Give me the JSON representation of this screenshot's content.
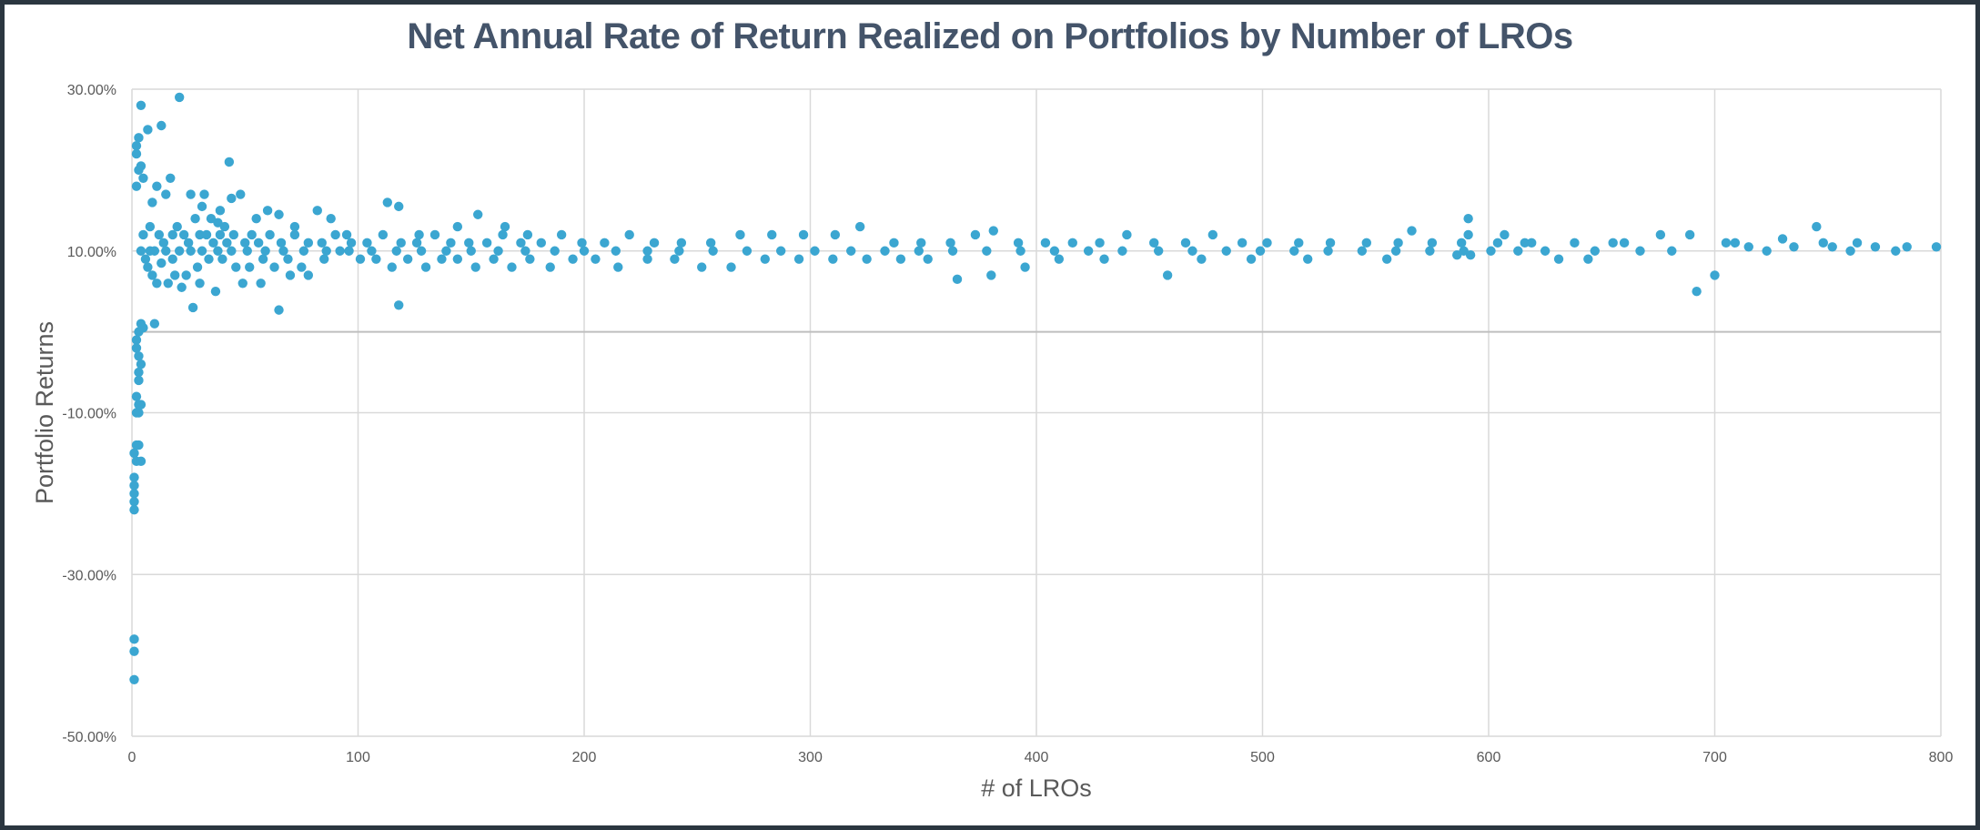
{
  "chart_data": {
    "type": "scatter",
    "title": "Net Annual Rate of Return Realized on Portfolios by Number of LROs",
    "xlabel": "# of LROs",
    "ylabel": "Portfolio Returns",
    "xlim": [
      0,
      800
    ],
    "ylim": [
      -50,
      30
    ],
    "x_ticks": [
      0,
      100,
      200,
      300,
      400,
      500,
      600,
      700,
      800
    ],
    "x_tick_labels": [
      "0",
      "100",
      "200",
      "300",
      "400",
      "500",
      "600",
      "700",
      "800"
    ],
    "y_ticks": [
      30,
      10,
      -10,
      -30,
      -50
    ],
    "y_tick_labels": [
      "30.00%",
      "10.00%",
      "-10.00%",
      "-30.00%",
      "-50.00%"
    ],
    "grid": true,
    "legend": "none",
    "marker_color": "#3ba6d1",
    "series": [
      {
        "points": [
          [
            1,
            -39.5
          ],
          [
            1,
            -43
          ],
          [
            1,
            -38
          ],
          [
            1,
            -15
          ],
          [
            1,
            -18
          ],
          [
            1,
            -19
          ],
          [
            1,
            -20
          ],
          [
            1,
            -21
          ],
          [
            1,
            -22
          ],
          [
            2,
            -14
          ],
          [
            2,
            -16
          ],
          [
            2,
            -10
          ],
          [
            3,
            -14
          ],
          [
            3,
            -9
          ],
          [
            3,
            -10
          ],
          [
            2,
            -8
          ],
          [
            3,
            -5
          ],
          [
            3,
            -3
          ],
          [
            2,
            -2
          ],
          [
            3,
            -6
          ],
          [
            4,
            -9
          ],
          [
            4,
            -16
          ],
          [
            4,
            -4
          ],
          [
            3,
            0
          ],
          [
            4,
            1
          ],
          [
            2,
            -1
          ],
          [
            2,
            22
          ],
          [
            2,
            23
          ],
          [
            3,
            24
          ],
          [
            3,
            20
          ],
          [
            4,
            20.5
          ],
          [
            2,
            18
          ],
          [
            4,
            28
          ],
          [
            5,
            19
          ],
          [
            7,
            25
          ],
          [
            9,
            16
          ],
          [
            11,
            18
          ],
          [
            13,
            25.5
          ],
          [
            15,
            17
          ],
          [
            17,
            19
          ],
          [
            21,
            29
          ],
          [
            43,
            21
          ],
          [
            26,
            17
          ],
          [
            32,
            17
          ],
          [
            31,
            15.5
          ],
          [
            38,
            13.5
          ],
          [
            39,
            15
          ],
          [
            44,
            16.5
          ],
          [
            48,
            17
          ],
          [
            28,
            14
          ],
          [
            35,
            14
          ],
          [
            41,
            13
          ],
          [
            55,
            14
          ],
          [
            60,
            15
          ],
          [
            65,
            14.5
          ],
          [
            72,
            13
          ],
          [
            82,
            15
          ],
          [
            88,
            14
          ],
          [
            95,
            12
          ],
          [
            113,
            16
          ],
          [
            118,
            15.5
          ],
          [
            127,
            12
          ],
          [
            144,
            13
          ],
          [
            153,
            14.5
          ],
          [
            175,
            12
          ],
          [
            165,
            13
          ],
          [
            118,
            3.3
          ],
          [
            65,
            2.7
          ],
          [
            5,
            0.5
          ],
          [
            10,
            1
          ],
          [
            13,
            8.5
          ],
          [
            22,
            5.5
          ],
          [
            27,
            3
          ],
          [
            30,
            6
          ],
          [
            37,
            5
          ],
          [
            49,
            6
          ],
          [
            57,
            6
          ],
          [
            70,
            7
          ],
          [
            78,
            7
          ],
          [
            7,
            8
          ],
          [
            9,
            7
          ],
          [
            11,
            6
          ],
          [
            16,
            6
          ],
          [
            19,
            7
          ],
          [
            24,
            7
          ],
          [
            29,
            8
          ],
          [
            34,
            9
          ],
          [
            40,
            9
          ],
          [
            46,
            8
          ],
          [
            52,
            8
          ],
          [
            58,
            9
          ],
          [
            63,
            8
          ],
          [
            69,
            9
          ],
          [
            75,
            8
          ],
          [
            85,
            9
          ],
          [
            92,
            10
          ],
          [
            101,
            9
          ],
          [
            108,
            9
          ],
          [
            115,
            8
          ],
          [
            122,
            9
          ],
          [
            130,
            8
          ],
          [
            137,
            9
          ],
          [
            144,
            9
          ],
          [
            152,
            8
          ],
          [
            160,
            9
          ],
          [
            168,
            8
          ],
          [
            176,
            9
          ],
          [
            185,
            8
          ],
          [
            195,
            9
          ],
          [
            205,
            9
          ],
          [
            215,
            8
          ],
          [
            228,
            9
          ],
          [
            240,
            9
          ],
          [
            252,
            8
          ],
          [
            265,
            8
          ],
          [
            280,
            9
          ],
          [
            295,
            9
          ],
          [
            310,
            9
          ],
          [
            325,
            9
          ],
          [
            340,
            9
          ],
          [
            352,
            9
          ],
          [
            365,
            6.5
          ],
          [
            380,
            7
          ],
          [
            395,
            8
          ],
          [
            410,
            9
          ],
          [
            430,
            9
          ],
          [
            458,
            7
          ],
          [
            473,
            9
          ],
          [
            495,
            9
          ],
          [
            520,
            9
          ],
          [
            555,
            9
          ],
          [
            586,
            9.5
          ],
          [
            592,
            9.5
          ],
          [
            631,
            9
          ],
          [
            644,
            9
          ],
          [
            700,
            7
          ],
          [
            692,
            5
          ],
          [
            5,
            12
          ],
          [
            8,
            13
          ],
          [
            12,
            12
          ],
          [
            14,
            11
          ],
          [
            18,
            12
          ],
          [
            20,
            13
          ],
          [
            23,
            12
          ],
          [
            25,
            11
          ],
          [
            30,
            12
          ],
          [
            33,
            12
          ],
          [
            36,
            11
          ],
          [
            39,
            12
          ],
          [
            42,
            11
          ],
          [
            45,
            12
          ],
          [
            50,
            11
          ],
          [
            53,
            12
          ],
          [
            56,
            11
          ],
          [
            61,
            12
          ],
          [
            66,
            11
          ],
          [
            72,
            12
          ],
          [
            78,
            11
          ],
          [
            84,
            11
          ],
          [
            90,
            12
          ],
          [
            97,
            11
          ],
          [
            104,
            11
          ],
          [
            111,
            12
          ],
          [
            119,
            11
          ],
          [
            126,
            11
          ],
          [
            134,
            12
          ],
          [
            141,
            11
          ],
          [
            149,
            11
          ],
          [
            157,
            11
          ],
          [
            164,
            12
          ],
          [
            172,
            11
          ],
          [
            181,
            11
          ],
          [
            190,
            12
          ],
          [
            199,
            11
          ],
          [
            209,
            11
          ],
          [
            220,
            12
          ],
          [
            231,
            11
          ],
          [
            243,
            11
          ],
          [
            256,
            11
          ],
          [
            269,
            12
          ],
          [
            283,
            12
          ],
          [
            297,
            12
          ],
          [
            311,
            12
          ],
          [
            322,
            13
          ],
          [
            337,
            11
          ],
          [
            349,
            11
          ],
          [
            362,
            11
          ],
          [
            373,
            12
          ],
          [
            381,
            12.5
          ],
          [
            392,
            11
          ],
          [
            404,
            11
          ],
          [
            416,
            11
          ],
          [
            428,
            11
          ],
          [
            440,
            12
          ],
          [
            452,
            11
          ],
          [
            466,
            11
          ],
          [
            478,
            12
          ],
          [
            491,
            11
          ],
          [
            502,
            11
          ],
          [
            516,
            11
          ],
          [
            530,
            11
          ],
          [
            546,
            11
          ],
          [
            560,
            11
          ],
          [
            566,
            12.5
          ],
          [
            575,
            11
          ],
          [
            588,
            11
          ],
          [
            591,
            14
          ],
          [
            591,
            12
          ],
          [
            604,
            11
          ],
          [
            607,
            12
          ],
          [
            616,
            11
          ],
          [
            619,
            11
          ],
          [
            638,
            11
          ],
          [
            655,
            11
          ],
          [
            660,
            11
          ],
          [
            676,
            12
          ],
          [
            689,
            12
          ],
          [
            705,
            11
          ],
          [
            709,
            11
          ],
          [
            715,
            10.5
          ],
          [
            723,
            10
          ],
          [
            730,
            11.5
          ],
          [
            735,
            10.5
          ],
          [
            745,
            13
          ],
          [
            748,
            11
          ],
          [
            752,
            10.5
          ],
          [
            760,
            10
          ],
          [
            763,
            11
          ],
          [
            771,
            10.5
          ],
          [
            780,
            10
          ],
          [
            785,
            10.5
          ],
          [
            798,
            10.5
          ],
          [
            4,
            10
          ],
          [
            6,
            9
          ],
          [
            8,
            10
          ],
          [
            10,
            10
          ],
          [
            15,
            10
          ],
          [
            18,
            9
          ],
          [
            21,
            10
          ],
          [
            26,
            10
          ],
          [
            31,
            10
          ],
          [
            38,
            10
          ],
          [
            44,
            10
          ],
          [
            51,
            10
          ],
          [
            59,
            10
          ],
          [
            67,
            10
          ],
          [
            76,
            10
          ],
          [
            86,
            10
          ],
          [
            96,
            10
          ],
          [
            106,
            10
          ],
          [
            117,
            10
          ],
          [
            128,
            10
          ],
          [
            139,
            10
          ],
          [
            150,
            10
          ],
          [
            162,
            10
          ],
          [
            174,
            10
          ],
          [
            187,
            10
          ],
          [
            200,
            10
          ],
          [
            214,
            10
          ],
          [
            228,
            10
          ],
          [
            242,
            10
          ],
          [
            257,
            10
          ],
          [
            272,
            10
          ],
          [
            287,
            10
          ],
          [
            302,
            10
          ],
          [
            318,
            10
          ],
          [
            333,
            10
          ],
          [
            348,
            10
          ],
          [
            363,
            10
          ],
          [
            378,
            10
          ],
          [
            393,
            10
          ],
          [
            408,
            10
          ],
          [
            423,
            10
          ],
          [
            438,
            10
          ],
          [
            454,
            10
          ],
          [
            469,
            10
          ],
          [
            484,
            10
          ],
          [
            499,
            10
          ],
          [
            514,
            10
          ],
          [
            529,
            10
          ],
          [
            544,
            10
          ],
          [
            559,
            10
          ],
          [
            574,
            10
          ],
          [
            589,
            10
          ],
          [
            601,
            10
          ],
          [
            613,
            10
          ],
          [
            625,
            10
          ],
          [
            647,
            10
          ],
          [
            667,
            10
          ],
          [
            681,
            10
          ]
        ]
      }
    ]
  }
}
